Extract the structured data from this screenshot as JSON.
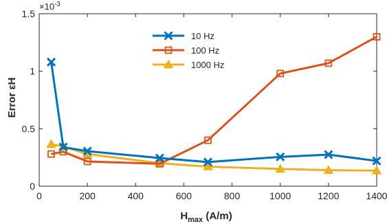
{
  "chart_data": {
    "type": "line",
    "xlabel_main": "H",
    "xlabel_sub": "max",
    "xlabel_rest": " (A/m)",
    "ylabel": "Error εH",
    "y_exponent_base": "×10",
    "y_exponent_power": "-3",
    "xlim": [
      0,
      1400
    ],
    "ylim": [
      0,
      1.5
    ],
    "xticks": [
      0,
      200,
      400,
      600,
      800,
      1000,
      1200,
      1400
    ],
    "xtick_labels": [
      "0",
      "200",
      "400",
      "600",
      "800",
      "1000",
      "1200",
      "1400"
    ],
    "yticks": [
      0,
      0.5,
      1,
      1.5
    ],
    "ytick_labels": [
      "0",
      "0.5",
      "1",
      "1.5"
    ],
    "legend_position": "top-center",
    "grid": false,
    "series": [
      {
        "name": "10 Hz",
        "color": "#0072BD",
        "marker": "x",
        "x": [
          50,
          100,
          200,
          500,
          700,
          1000,
          1200,
          1400
        ],
        "y": [
          1.08,
          0.34,
          0.305,
          0.245,
          0.21,
          0.255,
          0.275,
          0.22
        ]
      },
      {
        "name": "100 Hz",
        "color": "#D95319",
        "marker": "square",
        "x": [
          50,
          100,
          200,
          500,
          700,
          1000,
          1200,
          1400
        ],
        "y": [
          0.28,
          0.3,
          0.215,
          0.195,
          0.4,
          0.98,
          1.07,
          1.3
        ]
      },
      {
        "name": "1000 Hz",
        "color": "#EDB120",
        "marker": "triangle",
        "x": [
          50,
          100,
          200,
          500,
          700,
          1000,
          1200,
          1400
        ],
        "y": [
          0.365,
          0.345,
          0.28,
          0.2,
          0.17,
          0.15,
          0.14,
          0.135
        ]
      }
    ]
  }
}
